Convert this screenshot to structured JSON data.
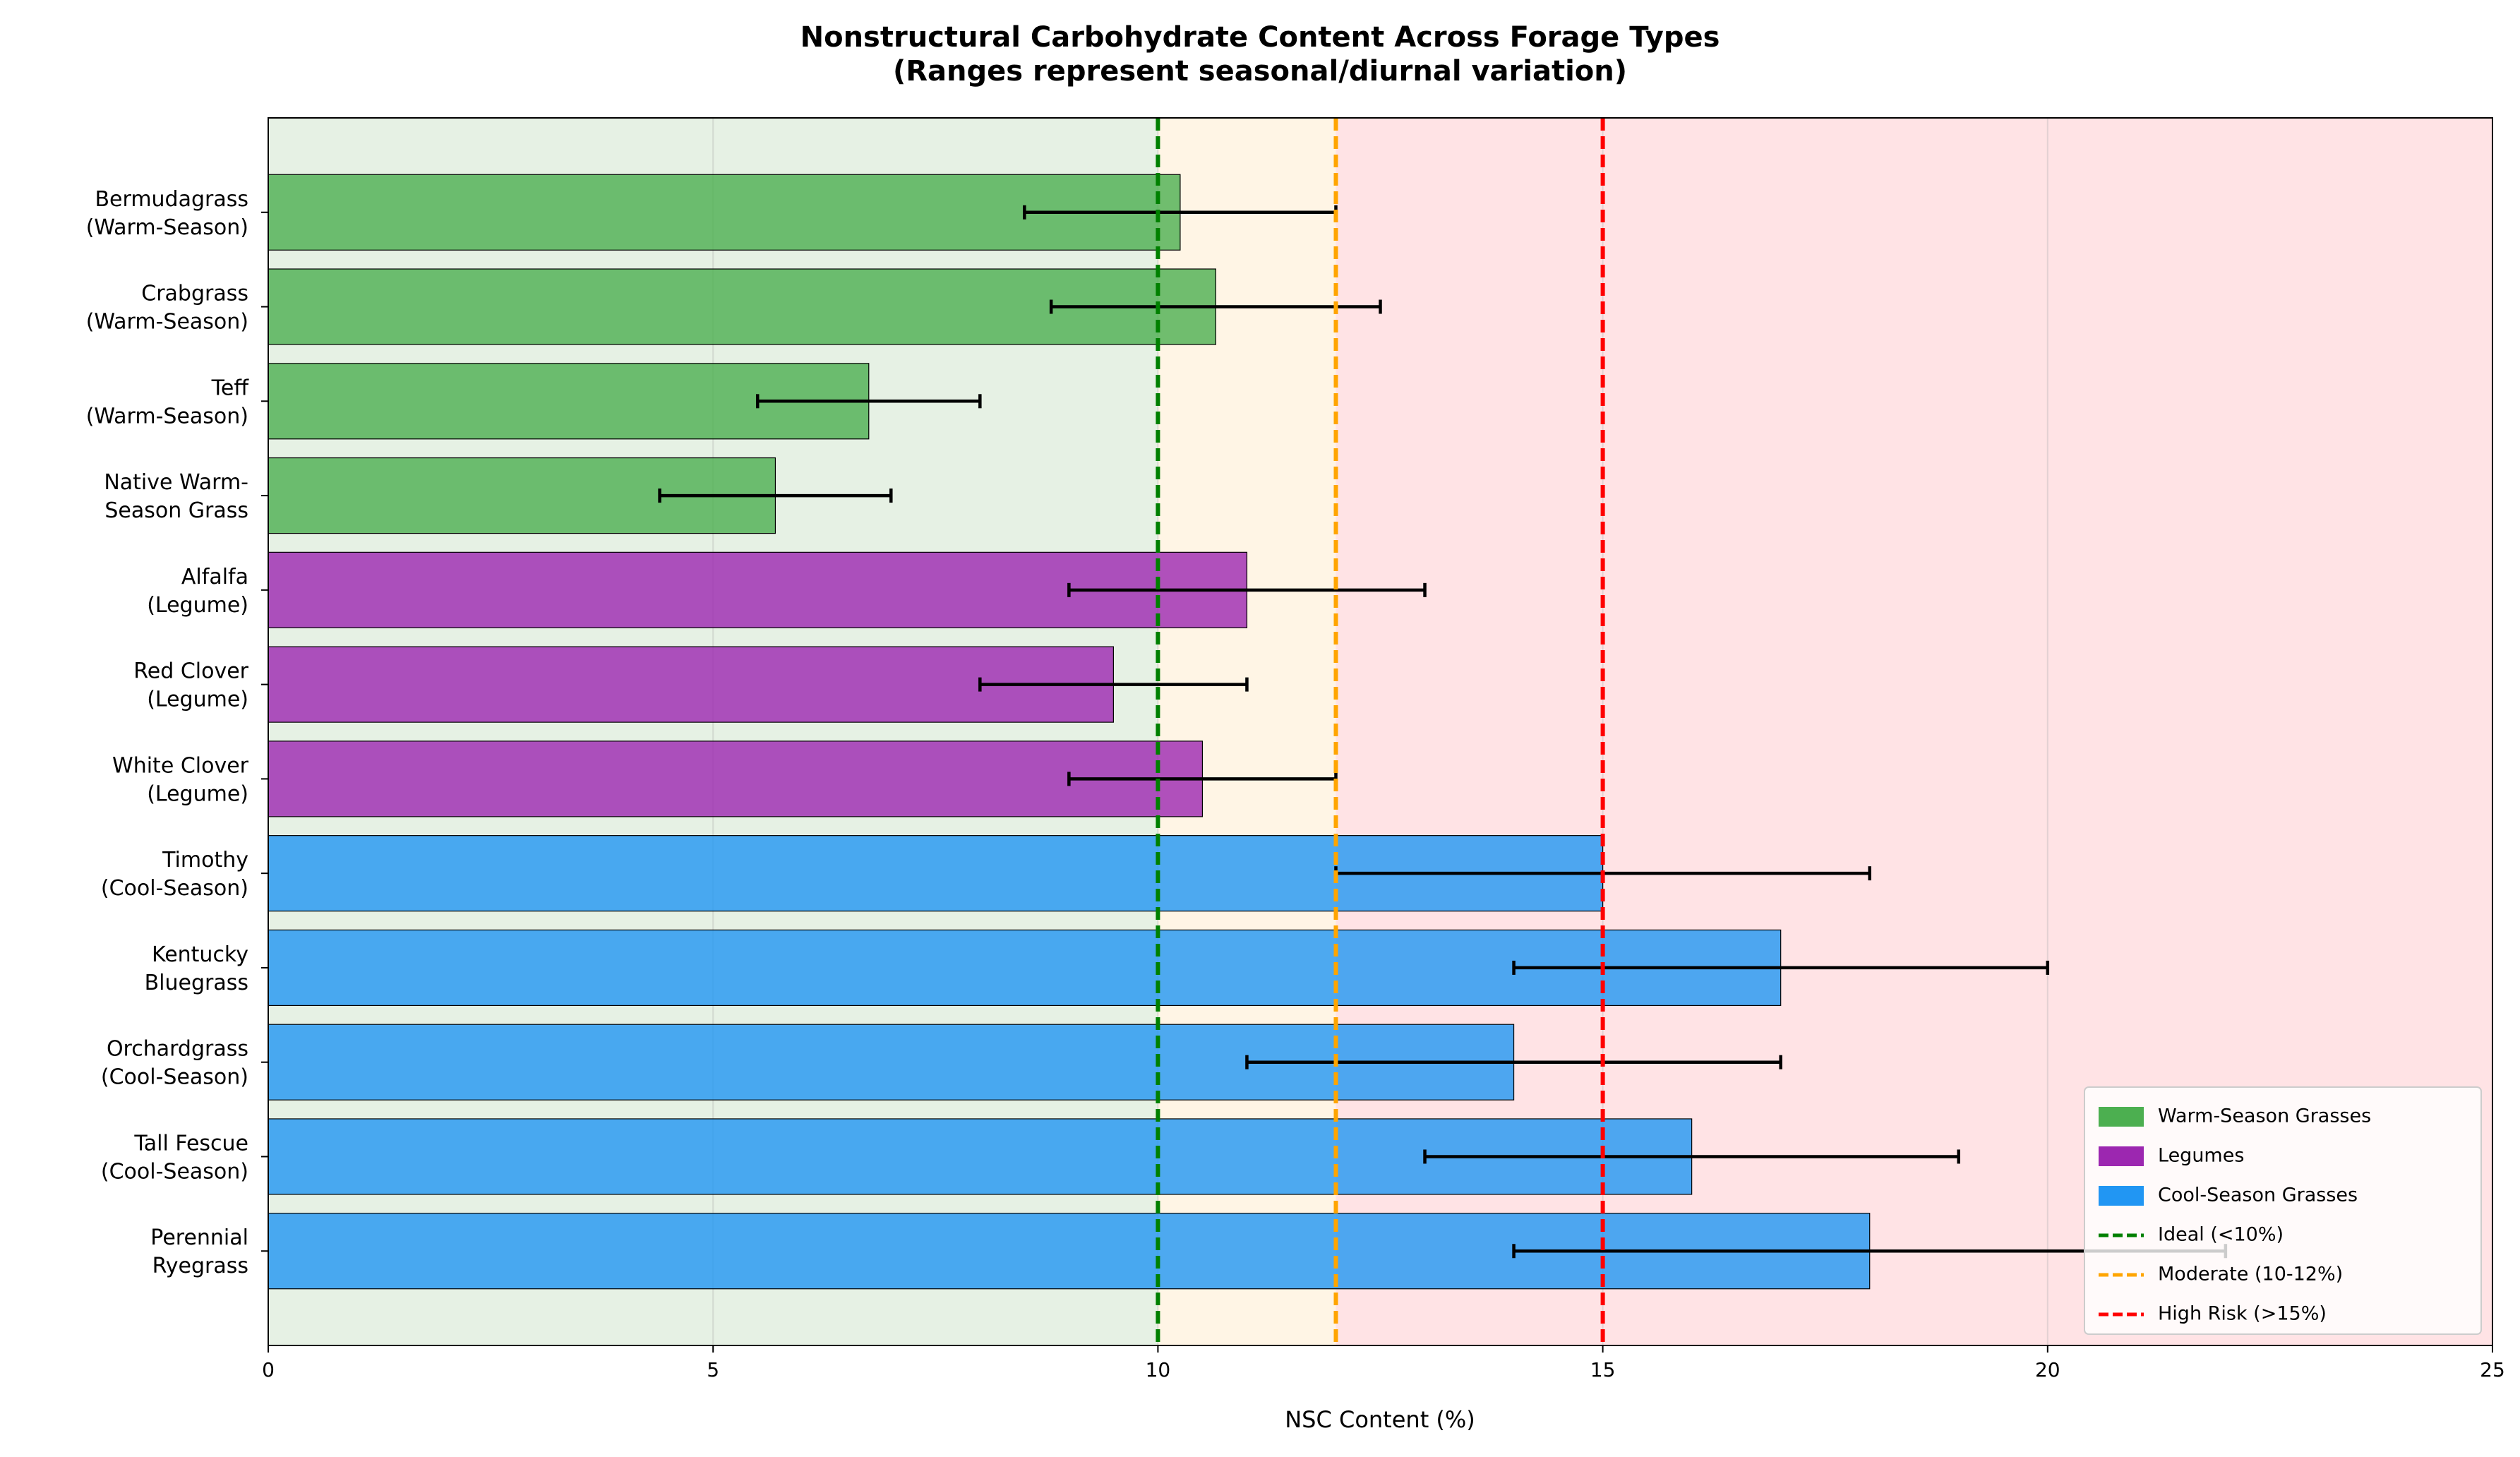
{
  "chart_data": {
    "type": "hbar_range",
    "title": [
      "Nonstructural Carbohydrate Content Across Forage Types",
      "(Ranges represent seasonal/diurnal variation)"
    ],
    "xlabel": "NSC Content (%)",
    "categories": [
      [
        "Bermudagrass",
        "(Warm-Season)"
      ],
      [
        "Crabgrass",
        "(Warm-Season)"
      ],
      [
        "Teff",
        "(Warm-Season)"
      ],
      [
        "Native Warm-",
        "Season Grass"
      ],
      [
        "Alfalfa",
        "(Legume)"
      ],
      [
        "Red Clover",
        "(Legume)"
      ],
      [
        "White Clover",
        "(Legume)"
      ],
      [
        "Timothy",
        "(Cool-Season)"
      ],
      [
        "Kentucky",
        "Bluegrass"
      ],
      [
        "Orchardgrass",
        "(Cool-Season)"
      ],
      [
        "Tall Fescue",
        "(Cool-Season)"
      ],
      [
        "Perennial",
        "Ryegrass"
      ]
    ],
    "series": [
      {
        "name": "Warm-Season Grasses",
        "color": "#4caf50",
        "values": [
          10.25,
          10.65,
          6.75,
          5.7,
          null,
          null,
          null,
          null,
          null,
          null,
          null,
          null
        ],
        "ranges": [
          [
            8.5,
            12
          ],
          [
            8.8,
            12.5
          ],
          [
            5.5,
            8
          ],
          [
            4.4,
            7
          ],
          null,
          null,
          null,
          null,
          null,
          null,
          null,
          null
        ]
      },
      {
        "name": "Legumes",
        "color": "#9c27b0",
        "values": [
          null,
          null,
          null,
          null,
          11,
          9.5,
          10.5,
          null,
          null,
          null,
          null,
          null
        ],
        "ranges": [
          null,
          null,
          null,
          null,
          [
            9,
            13
          ],
          [
            8,
            11
          ],
          [
            9,
            12
          ],
          null,
          null,
          null,
          null,
          null
        ]
      },
      {
        "name": "Cool-Season Grasses",
        "color": "#2196f3",
        "values": [
          null,
          null,
          null,
          null,
          null,
          null,
          null,
          15,
          17,
          14,
          16,
          18
        ],
        "ranges": [
          null,
          null,
          null,
          null,
          null,
          null,
          null,
          [
            12,
            18
          ],
          [
            14,
            20
          ],
          [
            11,
            17
          ],
          [
            13,
            19
          ],
          [
            14,
            22
          ]
        ]
      }
    ],
    "zones": [
      {
        "start": 0,
        "end": 10,
        "color": "#e6f1e4"
      },
      {
        "start": 10,
        "end": 12,
        "color": "#fff5e5"
      },
      {
        "start": 12,
        "end": 25,
        "color": "#ffe3e5"
      }
    ],
    "reference_lines": [
      {
        "value": 10,
        "name": "Ideal (<10%)",
        "color": "#008000"
      },
      {
        "value": 12,
        "name": "Moderate (10-12%)",
        "color": "#ffa500"
      },
      {
        "value": 15,
        "name": "High Risk (>15%)",
        "color": "#ff0000"
      }
    ],
    "xlim": [
      0,
      25
    ],
    "xticks": [
      0,
      5,
      10,
      15,
      20,
      25
    ],
    "grid": true,
    "legend": "lower right"
  }
}
